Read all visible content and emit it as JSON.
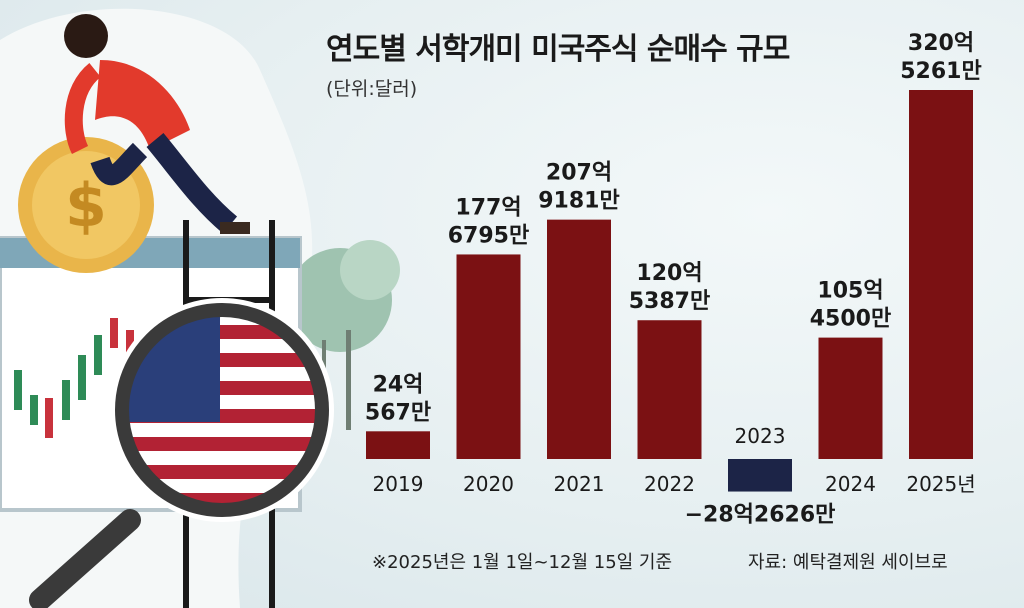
{
  "title": "연도별 서학개미 미국주식 순매수 규모",
  "unit_note": "(단위:달러)",
  "footnote": "※2025년은 1월 1일~12월 15일 기준",
  "source": "자료: 예탁결제원 세이브로",
  "colors": {
    "positive_bar": "#7b1113",
    "negative_bar": "#1c2447",
    "text": "#1a1a1a"
  },
  "illustration": {
    "elements": [
      "person-pushing-coin",
      "dollar-coin-icon",
      "candlestick-monitor",
      "magnifying-glass-icon",
      "us-flag",
      "tree"
    ]
  },
  "chart_data": {
    "type": "bar",
    "title": "연도별 서학개미 미국주식 순매수 규모",
    "unit": "달러",
    "categories": [
      "2019",
      "2020",
      "2021",
      "2022",
      "2023",
      "2024",
      "2025년"
    ],
    "values_usd": [
      2405670000,
      17767950000,
      20791810000,
      12053870000,
      -2826260000,
      10545000000,
      32052610000
    ],
    "value_labels": [
      [
        "24억",
        "567만"
      ],
      [
        "177억",
        "6795만"
      ],
      [
        "207억",
        "9181만"
      ],
      [
        "120억",
        "5387만"
      ],
      [
        "−28억2626만"
      ],
      [
        "105억",
        "4500만"
      ],
      [
        "320억",
        "5261만"
      ]
    ],
    "legend": "none",
    "grid": false
  }
}
